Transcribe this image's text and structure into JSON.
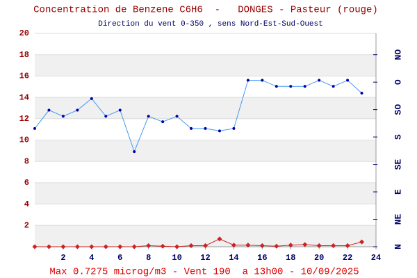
{
  "chart_data": {
    "type": "line",
    "title": "Concentration de Benzene C6H6  -   DONGES - Pasteur (rouge)",
    "subtitle": "Direction du vent 0-350 , sens Nord-Est-Sud-Ouest",
    "footer": "Max 0.7275 microg/m3 - Vent 190  a 13h00 - 10/09/2025",
    "x": [
      0,
      1,
      2,
      3,
      4,
      5,
      6,
      7,
      8,
      9,
      10,
      11,
      12,
      13,
      14,
      15,
      16,
      17,
      18,
      19,
      20,
      21,
      22,
      23
    ],
    "xlim": [
      0,
      24
    ],
    "xticks": [
      2,
      4,
      6,
      8,
      10,
      12,
      14,
      16,
      18,
      20,
      22,
      24
    ],
    "ylim": [
      0,
      20
    ],
    "yticks": [
      2,
      4,
      6,
      8,
      10,
      12,
      14,
      16,
      18,
      20
    ],
    "y2lim": [
      0,
      350
    ],
    "y2ticks": [
      {
        "value": 0,
        "label": "N"
      },
      {
        "value": 45,
        "label": "NE"
      },
      {
        "value": 90,
        "label": "E"
      },
      {
        "value": 135,
        "label": "SE"
      },
      {
        "value": 180,
        "label": "S"
      },
      {
        "value": 225,
        "label": "SO"
      },
      {
        "value": 270,
        "label": "O"
      },
      {
        "value": 315,
        "label": "NO"
      }
    ],
    "grid": true,
    "series": [
      {
        "color": "#cc2222",
        "values": [
          0,
          0,
          0,
          0,
          0,
          0,
          0,
          0,
          0.1,
          0.05,
          0,
          0.1,
          0.1,
          0.7275,
          0.15,
          0.15,
          0.1,
          0.05,
          0.15,
          0.2,
          0.1,
          0.1,
          0.1,
          0.45
        ]
      },
      {
        "color": "#4499ee",
        "axis": "y2",
        "values": [
          194,
          224,
          214,
          224,
          243,
          214,
          224,
          156,
          214,
          205,
          214,
          194,
          194,
          190,
          194,
          273,
          273,
          263,
          263,
          263,
          273,
          263,
          273,
          252
        ]
      }
    ]
  }
}
